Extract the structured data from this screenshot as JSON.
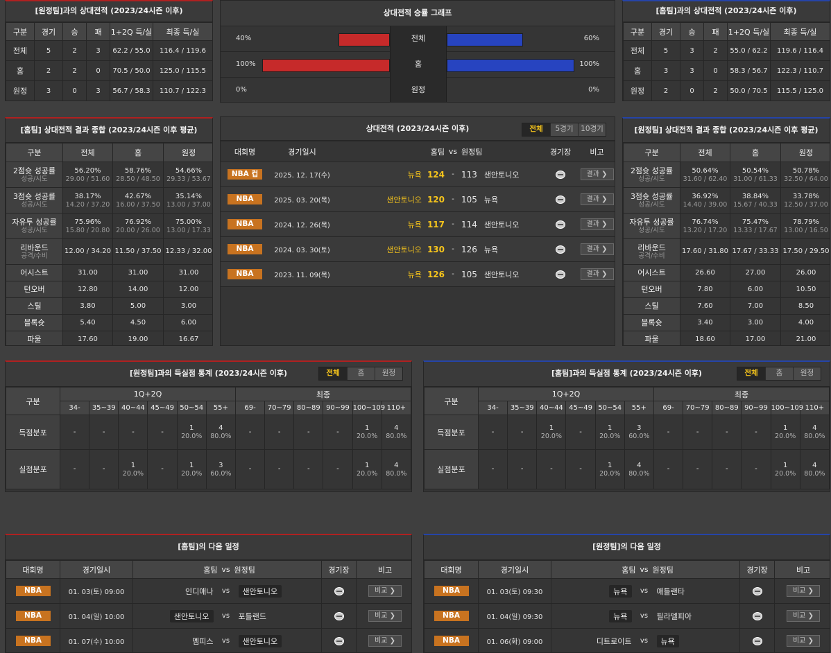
{
  "tl": {
    "title": "[원정팀]과의 상대전적 (2023/24시즌 이후)",
    "headers": [
      "구분",
      "경기",
      "승",
      "패",
      "1+2Q 득/실",
      "최종 득/실"
    ],
    "rows": [
      [
        "전체",
        "5",
        "2",
        "3",
        "62.2 / 55.0",
        "116.4 / 119.6"
      ],
      [
        "홈",
        "2",
        "2",
        "0",
        "70.5 / 50.0",
        "125.0 / 115.5"
      ],
      [
        "원정",
        "3",
        "0",
        "3",
        "56.7 / 58.3",
        "110.7 / 122.3"
      ]
    ]
  },
  "tr": {
    "title": "[홈팀]과의 상대전적 (2023/24시즌 이후)",
    "headers": [
      "구분",
      "경기",
      "승",
      "패",
      "1+2Q 득/실",
      "최종 득/실"
    ],
    "rows": [
      [
        "전체",
        "5",
        "3",
        "2",
        "55.0 / 62.2",
        "119.6 / 116.4"
      ],
      [
        "홈",
        "3",
        "3",
        "0",
        "58.3 / 56.7",
        "122.3 / 110.7"
      ],
      [
        "원정",
        "2",
        "0",
        "2",
        "50.0 / 70.5",
        "115.5 / 125.0"
      ]
    ]
  },
  "graph": {
    "title": "상대전적 승률 그래프",
    "rows": [
      {
        "label": "전체",
        "left_pct": "40%",
        "right_pct": "60%",
        "left": 40,
        "right": 60
      },
      {
        "label": "홈",
        "left_pct": "100%",
        "right_pct": "100%",
        "left": 100,
        "right": 100
      },
      {
        "label": "원정",
        "left_pct": "0%",
        "right_pct": "0%",
        "left": 0,
        "right": 0
      }
    ]
  },
  "sl": {
    "title": "[홈팀] 상대전적 결과 종합 (2023/24시즌 이후 평균)",
    "headers": [
      "구분",
      "전체",
      "홈",
      "원정"
    ],
    "rows": [
      {
        "n": "2점슛 성공률",
        "s": "성공/시도",
        "v": [
          [
            "56.20%",
            "29.00 / 51.60"
          ],
          [
            "58.76%",
            "28.50 / 48.50"
          ],
          [
            "54.66%",
            "29.33 / 53.67"
          ]
        ]
      },
      {
        "n": "3점슛 성공률",
        "s": "성공/시도",
        "v": [
          [
            "38.17%",
            "14.20 / 37.20"
          ],
          [
            "42.67%",
            "16.00 / 37.50"
          ],
          [
            "35.14%",
            "13.00 / 37.00"
          ]
        ]
      },
      {
        "n": "자유투 성공률",
        "s": "성공/시도",
        "v": [
          [
            "75.96%",
            "15.80 / 20.80"
          ],
          [
            "76.92%",
            "20.00 / 26.00"
          ],
          [
            "75.00%",
            "13.00 / 17.33"
          ]
        ]
      },
      {
        "n": "리바운드",
        "s": "공격/수비",
        "v": [
          [
            "12.00 / 34.20"
          ],
          [
            "11.50 / 37.50"
          ],
          [
            "12.33 / 32.00"
          ]
        ]
      },
      {
        "n": "어시스트",
        "s": "",
        "v": [
          [
            "31.00"
          ],
          [
            "31.00"
          ],
          [
            "31.00"
          ]
        ]
      },
      {
        "n": "턴오버",
        "s": "",
        "v": [
          [
            "12.80"
          ],
          [
            "14.00"
          ],
          [
            "12.00"
          ]
        ]
      },
      {
        "n": "스틸",
        "s": "",
        "v": [
          [
            "3.80"
          ],
          [
            "5.00"
          ],
          [
            "3.00"
          ]
        ]
      },
      {
        "n": "블록슛",
        "s": "",
        "v": [
          [
            "5.40"
          ],
          [
            "4.50"
          ],
          [
            "6.00"
          ]
        ]
      },
      {
        "n": "파울",
        "s": "",
        "v": [
          [
            "17.60"
          ],
          [
            "19.00"
          ],
          [
            "16.67"
          ]
        ]
      }
    ]
  },
  "sr": {
    "title": "[원정팀] 상대전적 결과 종합 (2023/24시즌 이후 평균)",
    "headers": [
      "구분",
      "전체",
      "홈",
      "원정"
    ],
    "rows": [
      {
        "n": "2점슛 성공률",
        "s": "성공/시도",
        "v": [
          [
            "50.64%",
            "31.60 / 62.40"
          ],
          [
            "50.54%",
            "31.00 / 61.33"
          ],
          [
            "50.78%",
            "32.50 / 64.00"
          ]
        ]
      },
      {
        "n": "3점슛 성공률",
        "s": "성공/시도",
        "v": [
          [
            "36.92%",
            "14.40 / 39.00"
          ],
          [
            "38.84%",
            "15.67 / 40.33"
          ],
          [
            "33.78%",
            "12.50 / 37.00"
          ]
        ]
      },
      {
        "n": "자유투 성공률",
        "s": "성공/시도",
        "v": [
          [
            "76.74%",
            "13.20 / 17.20"
          ],
          [
            "75.47%",
            "13.33 / 17.67"
          ],
          [
            "78.79%",
            "13.00 / 16.50"
          ]
        ]
      },
      {
        "n": "리바운드",
        "s": "공격/수비",
        "v": [
          [
            "17.60 / 31.80"
          ],
          [
            "17.67 / 33.33"
          ],
          [
            "17.50 / 29.50"
          ]
        ]
      },
      {
        "n": "어시스트",
        "s": "",
        "v": [
          [
            "26.60"
          ],
          [
            "27.00"
          ],
          [
            "26.00"
          ]
        ]
      },
      {
        "n": "턴오버",
        "s": "",
        "v": [
          [
            "7.80"
          ],
          [
            "6.00"
          ],
          [
            "10.50"
          ]
        ]
      },
      {
        "n": "스틸",
        "s": "",
        "v": [
          [
            "7.60"
          ],
          [
            "7.00"
          ],
          [
            "8.50"
          ]
        ]
      },
      {
        "n": "블록슛",
        "s": "",
        "v": [
          [
            "3.40"
          ],
          [
            "3.00"
          ],
          [
            "4.00"
          ]
        ]
      },
      {
        "n": "파울",
        "s": "",
        "v": [
          [
            "18.60"
          ],
          [
            "17.00"
          ],
          [
            "21.00"
          ]
        ]
      }
    ]
  },
  "h2h": {
    "title": "상대전적 (2023/24시즌 이후)",
    "tabs": [
      "전체",
      "5경기",
      "10경기"
    ],
    "headers": [
      "대회명",
      "경기일시",
      "홈팀",
      "vs",
      "원정팀",
      "경기장",
      "비고"
    ],
    "result_label": "결과 ❯",
    "games": [
      {
        "league": "NBA 컵",
        "date": "2025. 12. 17(수)",
        "home": "뉴욕",
        "hs": "124",
        "as": "113",
        "away": "샌안토니오",
        "hw": true
      },
      {
        "league": "NBA",
        "date": "2025. 03. 20(목)",
        "home": "샌안토니오",
        "hs": "120",
        "as": "105",
        "away": "뉴욕",
        "hw": true
      },
      {
        "league": "NBA",
        "date": "2024. 12. 26(목)",
        "home": "뉴욕",
        "hs": "117",
        "as": "114",
        "away": "샌안토니오",
        "hw": true
      },
      {
        "league": "NBA",
        "date": "2024. 03. 30(토)",
        "home": "샌안토니오",
        "hs": "130",
        "as": "126",
        "away": "뉴욕",
        "hw": true
      },
      {
        "league": "NBA",
        "date": "2023. 11. 09(목)",
        "home": "뉴욕",
        "hs": "126",
        "as": "105",
        "away": "샌안토니오",
        "hw": true
      }
    ]
  },
  "pl": {
    "title": "[원정팀]과의 득실점 통계 (2023/24시즌 이후)",
    "tabs": [
      "전체",
      "홈",
      "원정"
    ],
    "h1": "구분",
    "g1": "1Q+2Q",
    "g2": "최종",
    "cols": [
      "34-",
      "35~39",
      "40~44",
      "45~49",
      "50~54",
      "55+",
      "69-",
      "70~79",
      "80~89",
      "90~99",
      "100~109",
      "110+"
    ],
    "rows": [
      {
        "label": "득점분포",
        "cells": [
          [
            "-"
          ],
          [
            "-"
          ],
          [
            "-"
          ],
          [
            "-"
          ],
          [
            "1",
            "20.0%"
          ],
          [
            "4",
            "80.0%"
          ],
          [
            "-"
          ],
          [
            "-"
          ],
          [
            "-"
          ],
          [
            "-"
          ],
          [
            "1",
            "20.0%"
          ],
          [
            "4",
            "80.0%"
          ]
        ]
      },
      {
        "label": "실점분포",
        "cells": [
          [
            "-"
          ],
          [
            "-"
          ],
          [
            "1",
            "20.0%"
          ],
          [
            "-"
          ],
          [
            "1",
            "20.0%"
          ],
          [
            "3",
            "60.0%"
          ],
          [
            "-"
          ],
          [
            "-"
          ],
          [
            "-"
          ],
          [
            "-"
          ],
          [
            "1",
            "20.0%"
          ],
          [
            "4",
            "80.0%"
          ]
        ]
      }
    ]
  },
  "pr": {
    "title": "[홈팀]과의 득실점 통계 (2023/24시즌 이후)",
    "tabs": [
      "전체",
      "홈",
      "원정"
    ],
    "h1": "구분",
    "g1": "1Q+2Q",
    "g2": "최종",
    "cols": [
      "34-",
      "35~39",
      "40~44",
      "45~49",
      "50~54",
      "55+",
      "69-",
      "70~79",
      "80~89",
      "90~99",
      "100~109",
      "110+"
    ],
    "rows": [
      {
        "label": "득점분포",
        "cells": [
          [
            "-"
          ],
          [
            "-"
          ],
          [
            "1",
            "20.0%"
          ],
          [
            "-"
          ],
          [
            "1",
            "20.0%"
          ],
          [
            "3",
            "60.0%"
          ],
          [
            "-"
          ],
          [
            "-"
          ],
          [
            "-"
          ],
          [
            "-"
          ],
          [
            "1",
            "20.0%"
          ],
          [
            "4",
            "80.0%"
          ]
        ]
      },
      {
        "label": "실점분포",
        "cells": [
          [
            "-"
          ],
          [
            "-"
          ],
          [
            "-"
          ],
          [
            "-"
          ],
          [
            "1",
            "20.0%"
          ],
          [
            "4",
            "80.0%"
          ],
          [
            "-"
          ],
          [
            "-"
          ],
          [
            "-"
          ],
          [
            "-"
          ],
          [
            "1",
            "20.0%"
          ],
          [
            "4",
            "80.0%"
          ]
        ]
      }
    ]
  },
  "nl": {
    "title": "[홈팀]의 다음 일정",
    "headers": [
      "대회명",
      "경기일시",
      "홈팀",
      "vs",
      "원정팀",
      "경기장",
      "비고"
    ],
    "btn": "비교 ❯",
    "games": [
      {
        "league": "NBA",
        "date": "01. 03(토) 09:00",
        "home": "인디애나",
        "away": "샌안토니오",
        "hl": "away"
      },
      {
        "league": "NBA",
        "date": "01. 04(일) 10:00",
        "home": "샌안토니오",
        "away": "포틀랜드",
        "hl": "home"
      },
      {
        "league": "NBA",
        "date": "01. 07(수) 10:00",
        "home": "멤피스",
        "away": "샌안토니오",
        "hl": "away"
      }
    ]
  },
  "nr": {
    "title": "[원정팀]의 다음 일정",
    "headers": [
      "대회명",
      "경기일시",
      "홈팀",
      "vs",
      "원정팀",
      "경기장",
      "비고"
    ],
    "btn": "비교 ❯",
    "games": [
      {
        "league": "NBA",
        "date": "01. 03(토) 09:30",
        "home": "뉴욕",
        "away": "애틀랜타",
        "hl": "home"
      },
      {
        "league": "NBA",
        "date": "01. 04(일) 09:30",
        "home": "뉴욕",
        "away": "필라델피아",
        "hl": "home"
      },
      {
        "league": "NBA",
        "date": "01. 06(화) 09:00",
        "home": "디트로이트",
        "away": "뉴욕",
        "hl": "away"
      }
    ]
  },
  "colors": {
    "accent": "#f7c51b",
    "league_badge": "#c87320",
    "red": "#c62a2a",
    "blue": "#2744c0"
  }
}
